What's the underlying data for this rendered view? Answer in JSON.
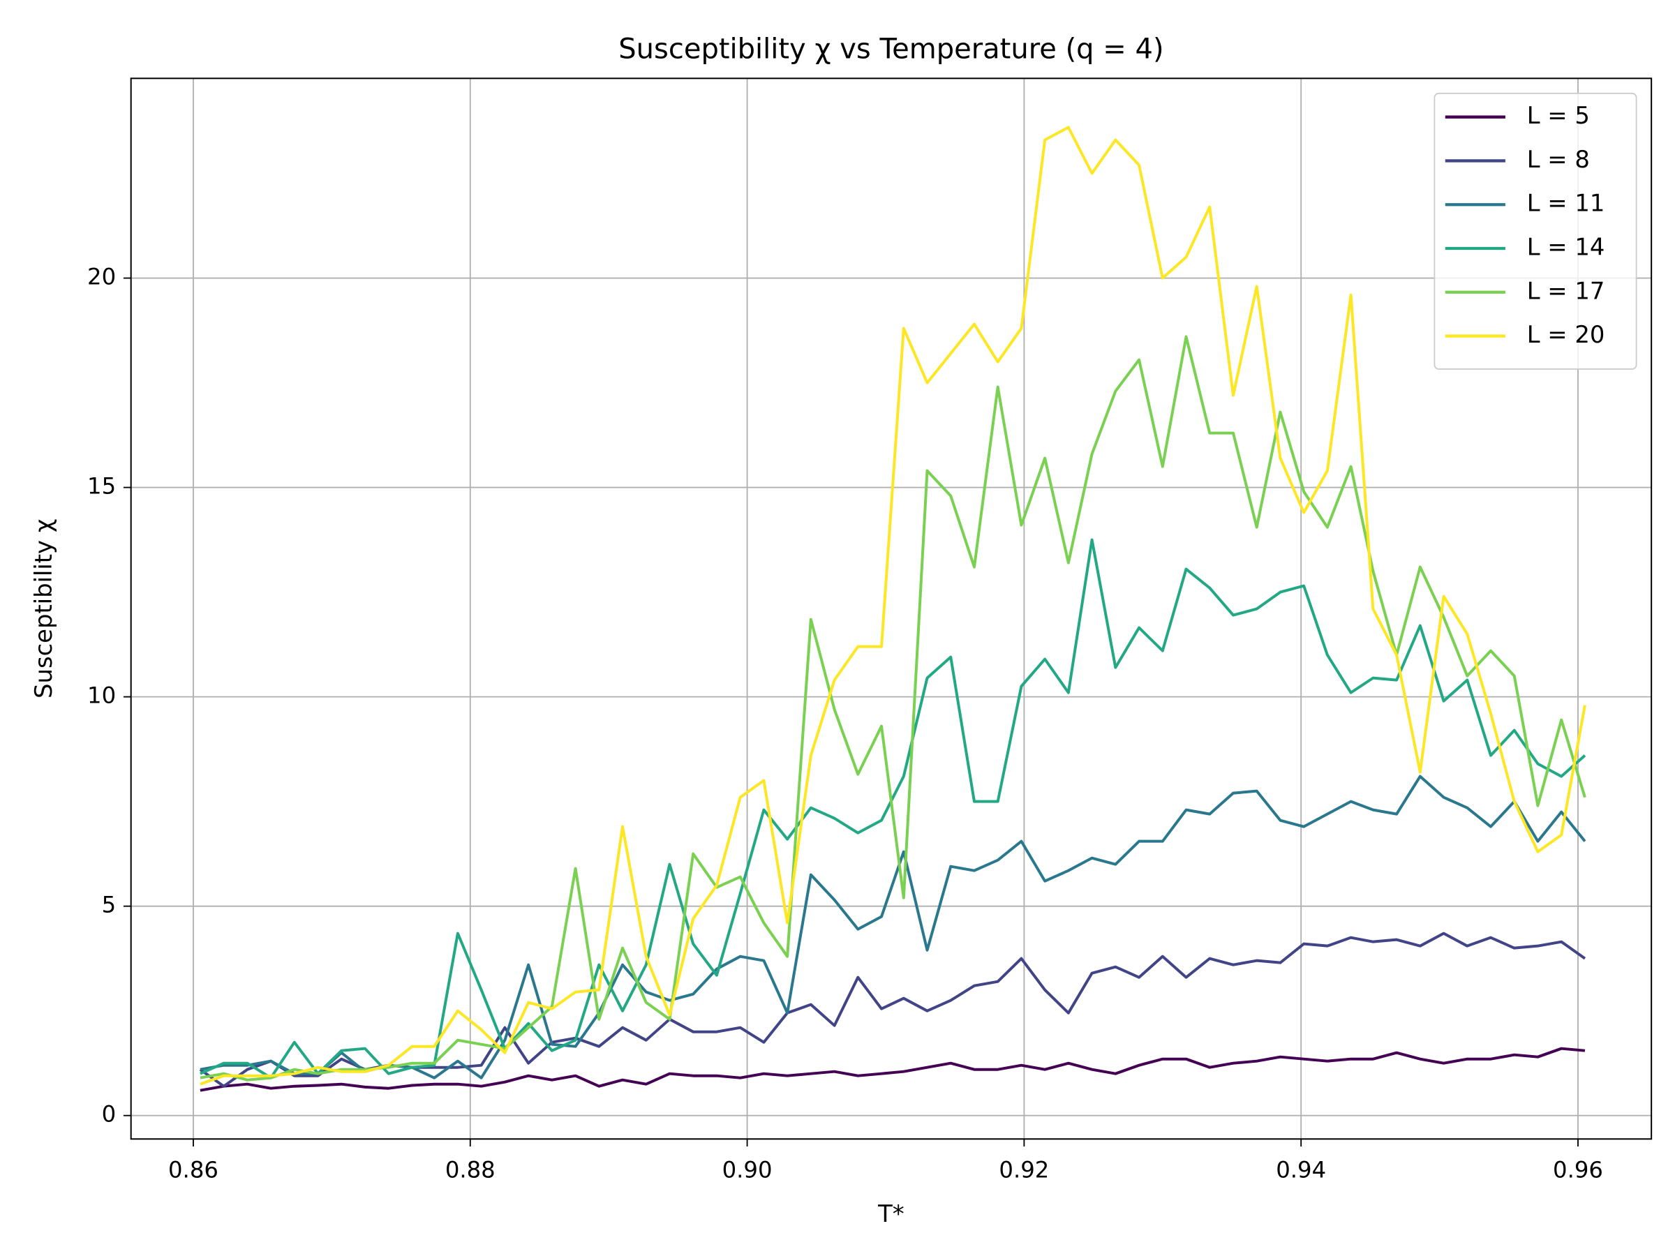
{
  "chart_data": {
    "type": "line",
    "title": "Susceptibility χ vs Temperature (q = 4)",
    "xlabel": "T*",
    "ylabel": "Susceptibility χ",
    "x": [
      0.8605,
      0.8622,
      0.8639,
      0.8656,
      0.8673,
      0.869,
      0.8707,
      0.8724,
      0.8741,
      0.8758,
      0.8774,
      0.8791,
      0.8808,
      0.8825,
      0.8842,
      0.8859,
      0.8876,
      0.8893,
      0.891,
      0.8927,
      0.8944,
      0.8961,
      0.8978,
      0.8995,
      0.9012,
      0.9029,
      0.9046,
      0.9063,
      0.908,
      0.9097,
      0.9113,
      0.913,
      0.9147,
      0.9164,
      0.9181,
      0.9198,
      0.9215,
      0.9232,
      0.9249,
      0.9266,
      0.9283,
      0.93,
      0.9317,
      0.9334,
      0.9351,
      0.9368,
      0.9385,
      0.9402,
      0.9419,
      0.9436,
      0.9452,
      0.9469,
      0.9486,
      0.9503,
      0.952,
      0.9537,
      0.9554,
      0.9571,
      0.9588,
      0.9605
    ],
    "series": [
      {
        "name": "L = 5",
        "color": "#440154",
        "values": [
          0.6,
          0.7,
          0.75,
          0.65,
          0.7,
          0.72,
          0.75,
          0.68,
          0.65,
          0.72,
          0.75,
          0.75,
          0.7,
          0.8,
          0.95,
          0.85,
          0.95,
          0.7,
          0.85,
          0.75,
          1.0,
          0.95,
          0.95,
          0.9,
          1.0,
          0.95,
          1.0,
          1.05,
          0.95,
          1.0,
          1.05,
          1.15,
          1.25,
          1.1,
          1.1,
          1.2,
          1.1,
          1.25,
          1.1,
          1.0,
          1.2,
          1.35,
          1.35,
          1.15,
          1.25,
          1.3,
          1.4,
          1.35,
          1.3,
          1.35,
          1.35,
          1.5,
          1.35,
          1.25,
          1.35,
          1.35,
          1.45,
          1.4,
          1.6,
          1.55
        ]
      },
      {
        "name": "L = 8",
        "color": "#414487",
        "values": [
          1.1,
          0.7,
          1.1,
          1.3,
          0.95,
          0.95,
          1.35,
          1.1,
          1.2,
          1.15,
          1.15,
          1.15,
          1.2,
          2.1,
          1.25,
          1.75,
          1.85,
          1.65,
          2.1,
          1.8,
          2.3,
          2.0,
          2.0,
          2.1,
          1.75,
          2.45,
          2.65,
          2.15,
          3.3,
          2.55,
          2.8,
          2.5,
          2.75,
          3.1,
          3.2,
          3.75,
          3.0,
          2.45,
          3.4,
          3.55,
          3.3,
          3.8,
          3.3,
          3.75,
          3.6,
          3.7,
          3.65,
          4.1,
          4.05,
          4.25,
          4.15,
          4.2,
          4.05,
          4.35,
          4.05,
          4.25,
          4.0,
          4.05,
          4.15,
          3.75
        ]
      },
      {
        "name": "L = 11",
        "color": "#2a788e",
        "values": [
          1.1,
          1.2,
          1.2,
          1.3,
          1.0,
          1.0,
          1.5,
          1.05,
          1.2,
          1.15,
          0.9,
          1.3,
          0.9,
          1.8,
          3.6,
          1.7,
          1.65,
          2.45,
          3.6,
          2.95,
          2.75,
          2.9,
          3.5,
          3.8,
          3.7,
          2.45,
          5.75,
          5.15,
          4.45,
          4.75,
          6.3,
          3.95,
          5.95,
          5.85,
          6.1,
          6.55,
          5.6,
          5.85,
          6.15,
          6.0,
          6.55,
          6.55,
          7.3,
          7.2,
          7.7,
          7.75,
          7.05,
          6.9,
          7.2,
          7.5,
          7.3,
          7.2,
          8.1,
          7.6,
          7.35,
          6.9,
          7.5,
          6.55,
          7.25,
          6.55
        ]
      },
      {
        "name": "L = 14",
        "color": "#22a884",
        "values": [
          1.0,
          1.25,
          1.25,
          0.9,
          1.75,
          1.0,
          1.55,
          1.6,
          1.0,
          1.15,
          1.2,
          4.35,
          3.0,
          1.6,
          2.2,
          1.55,
          1.8,
          3.6,
          2.5,
          3.6,
          6.0,
          4.1,
          3.35,
          5.3,
          7.3,
          6.6,
          7.35,
          7.1,
          6.75,
          7.05,
          8.1,
          10.45,
          10.95,
          7.5,
          7.5,
          10.25,
          10.9,
          10.1,
          13.75,
          10.7,
          11.65,
          11.1,
          13.05,
          12.6,
          11.95,
          12.1,
          12.5,
          12.65,
          11.0,
          10.1,
          10.45,
          10.4,
          11.7,
          9.9,
          10.4,
          8.6,
          9.2,
          8.4,
          8.1,
          8.6
        ]
      },
      {
        "name": "L = 17",
        "color": "#7ad151",
        "values": [
          0.9,
          1.0,
          0.85,
          0.9,
          1.1,
          1.0,
          1.1,
          1.1,
          1.15,
          1.25,
          1.25,
          1.8,
          1.7,
          1.6,
          2.1,
          2.6,
          5.9,
          2.3,
          4.0,
          2.7,
          2.3,
          6.25,
          5.45,
          5.7,
          4.6,
          3.8,
          11.85,
          9.7,
          8.15,
          9.3,
          5.2,
          15.4,
          14.8,
          13.1,
          17.4,
          14.1,
          15.7,
          13.2,
          15.8,
          17.3,
          18.05,
          15.5,
          18.6,
          16.3,
          16.3,
          14.05,
          16.8,
          14.9,
          14.05,
          15.5,
          13.0,
          11.0,
          13.1,
          11.9,
          10.5,
          11.1,
          10.5,
          7.4,
          9.45,
          7.6
        ]
      },
      {
        "name": "L = 20",
        "color": "#fde725",
        "values": [
          0.75,
          0.95,
          0.95,
          0.95,
          1.0,
          1.15,
          1.05,
          1.05,
          1.2,
          1.65,
          1.65,
          2.5,
          2.05,
          1.5,
          2.7,
          2.55,
          2.95,
          3.0,
          6.9,
          3.8,
          2.4,
          4.7,
          5.5,
          7.6,
          8.0,
          4.6,
          8.6,
          10.4,
          11.2,
          11.2,
          18.8,
          17.5,
          18.2,
          18.9,
          18.0,
          18.8,
          23.3,
          23.6,
          22.5,
          23.3,
          22.7,
          20.0,
          20.5,
          21.7,
          17.2,
          19.8,
          15.7,
          14.4,
          15.4,
          19.6,
          12.1,
          11.0,
          8.2,
          12.4,
          11.5,
          9.6,
          7.5,
          6.3,
          6.7,
          9.8
        ]
      }
    ],
    "xlim": [
      0.8555,
      0.9653
    ],
    "ylim": [
      -0.56,
      24.77
    ],
    "xticks": [
      0.86,
      0.88,
      {
        "value": 0.9,
        "label": "0.90"
      },
      0.92,
      0.94,
      0.96
    ],
    "yticks": [
      0,
      5,
      10,
      15,
      20
    ],
    "grid": true,
    "legend": "upper-right"
  }
}
